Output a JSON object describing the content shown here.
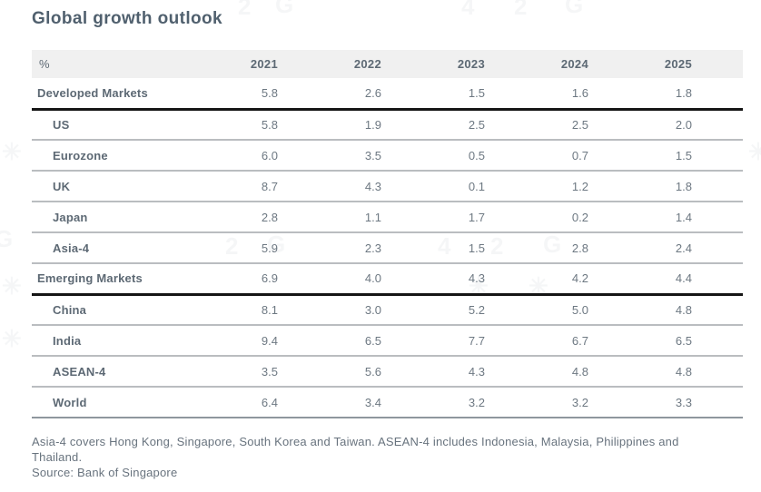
{
  "page": {
    "title": "Global growth outlook"
  },
  "chart_data": {
    "type": "table",
    "title": "Global growth outlook",
    "corner_label": "%",
    "unit": "%",
    "columns": [
      "2021",
      "2022",
      "2023",
      "2024",
      "2025"
    ],
    "rows": [
      {
        "label": "Developed Markets",
        "group": true,
        "values": [
          5.8,
          2.6,
          1.5,
          1.6,
          1.8
        ]
      },
      {
        "label": "US",
        "group": false,
        "values": [
          5.8,
          1.9,
          2.5,
          2.5,
          2.0
        ]
      },
      {
        "label": "Eurozone",
        "group": false,
        "values": [
          6.0,
          3.5,
          0.5,
          0.7,
          1.5
        ]
      },
      {
        "label": "UK",
        "group": false,
        "values": [
          8.7,
          4.3,
          0.1,
          1.2,
          1.8
        ]
      },
      {
        "label": "Japan",
        "group": false,
        "values": [
          2.8,
          1.1,
          1.7,
          0.2,
          1.4
        ]
      },
      {
        "label": "Asia-4",
        "group": false,
        "values": [
          5.9,
          2.3,
          1.5,
          2.8,
          2.4
        ]
      },
      {
        "label": "Emerging Markets",
        "group": true,
        "values": [
          6.9,
          4.0,
          4.3,
          4.2,
          4.4
        ]
      },
      {
        "label": "China",
        "group": false,
        "values": [
          8.1,
          3.0,
          5.2,
          5.0,
          4.8
        ]
      },
      {
        "label": "India",
        "group": false,
        "values": [
          9.4,
          6.5,
          7.7,
          6.7,
          6.5
        ]
      },
      {
        "label": "ASEAN-4",
        "group": false,
        "values": [
          3.5,
          5.6,
          4.3,
          4.8,
          4.8
        ]
      },
      {
        "label": "World",
        "group": false,
        "values": [
          6.4,
          3.4,
          3.2,
          3.2,
          3.3
        ]
      }
    ],
    "value_decimals": 1
  },
  "footnotes": {
    "note": "Asia-4 covers Hong Kong, Singapore, South Korea and Taiwan. ASEAN-4 includes Indonesia, Malaysia, Philippines and Thailand.",
    "source": "Source: Bank of Singapore"
  },
  "watermark": {
    "digit_four": "4",
    "digit_two": "2",
    "letter_g": "G",
    "star": "✳"
  },
  "colors": {
    "title_text": "#50606e",
    "body_text": "#6d7882",
    "label_text": "#5d6974",
    "header_background": "#f0f0f0",
    "row_divider": "#babdc0",
    "group_divider": "#161616",
    "table_bottom_divider": "#8f979e"
  }
}
